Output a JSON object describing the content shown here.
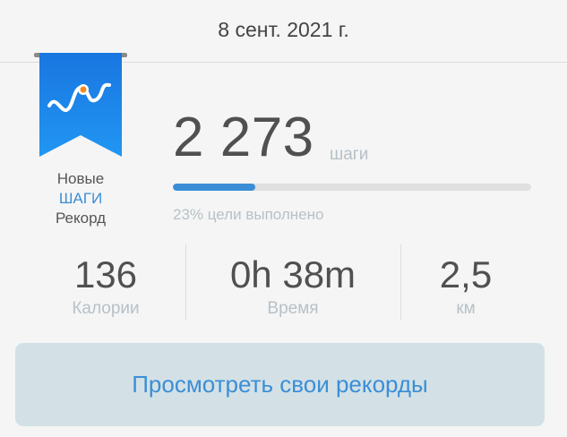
{
  "header": {
    "date": "8 сент. 2021 г."
  },
  "badge": {
    "icon": "step-record-ribbon-icon",
    "line1": "Новые",
    "line2": "ШАГИ",
    "line3": "Рекорд",
    "color": "#1e88e5"
  },
  "steps": {
    "value": "2 273",
    "unit": "шаги",
    "progress_percent": 23,
    "goal_text": "23% цели выполнено"
  },
  "stats": [
    {
      "value": "136",
      "label": "Калории"
    },
    {
      "value": "0h 38m",
      "label": "Время"
    },
    {
      "value": "2,5",
      "label": "км"
    }
  ],
  "button": {
    "label": "Просмотреть свои рекорды"
  },
  "colors": {
    "accent": "#3b8ed6",
    "background": "#f5f5f5",
    "button_bg": "#d3e1e6"
  }
}
